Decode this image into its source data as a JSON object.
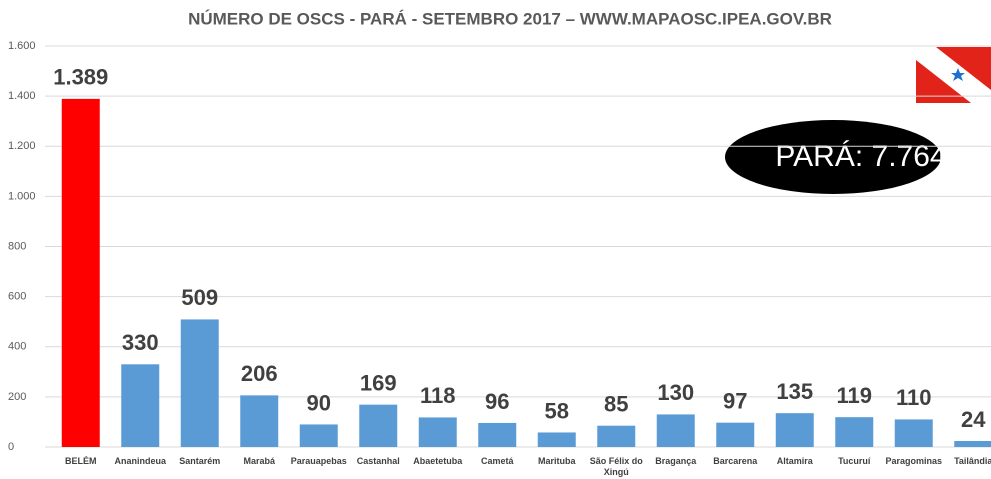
{
  "chart_data": {
    "type": "bar",
    "title": "NÚMERO DE OSCS - PARÁ - SETEMBRO 2017 – WWW.MAPAOSC.IPEA.GOV.BR",
    "categories": [
      "BELÉM",
      "Ananindeua",
      "Santarém",
      "Marabá",
      "Parauapebas",
      "Castanhal",
      "Abaetetuba",
      "Cametá",
      "Marituba",
      "São Félix do Xingú",
      "Bragança",
      "Barcarena",
      "Altamira",
      "Tucuruí",
      "Paragominas",
      "Tailândia"
    ],
    "values": [
      1389,
      330,
      509,
      206,
      90,
      169,
      118,
      96,
      58,
      85,
      130,
      97,
      135,
      119,
      110,
      24
    ],
    "value_labels": [
      "1.389",
      "330",
      "509",
      "206",
      "90",
      "169",
      "118",
      "96",
      "58",
      "85",
      "130",
      "97",
      "135",
      "119",
      "110",
      "24"
    ],
    "colors": [
      "#ff0000",
      "#5b9bd5",
      "#5b9bd5",
      "#5b9bd5",
      "#5b9bd5",
      "#5b9bd5",
      "#5b9bd5",
      "#5b9bd5",
      "#5b9bd5",
      "#5b9bd5",
      "#5b9bd5",
      "#5b9bd5",
      "#5b9bd5",
      "#5b9bd5",
      "#5b9bd5",
      "#5b9bd5"
    ],
    "ylim": [
      0,
      1600
    ],
    "yticks": [
      0,
      200,
      400,
      600,
      800,
      {
        "value": 1000,
        "label": "1.000"
      },
      {
        "value": 1200,
        "label": "1.200"
      },
      {
        "value": 1400,
        "label": "1.400"
      },
      {
        "value": 1600,
        "label": "1.600"
      }
    ],
    "grid": true,
    "annotation": "PARÁ: 7.764"
  }
}
